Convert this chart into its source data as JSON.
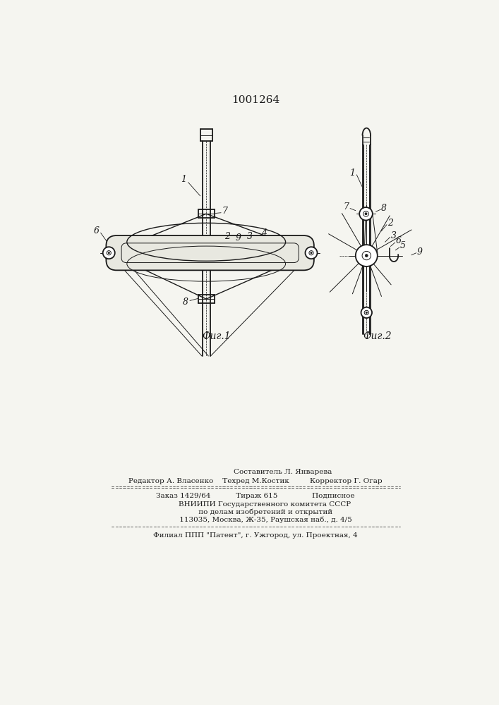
{
  "patent_number": "1001264",
  "fig1_label": "Фиг.1",
  "fig2_label": "Фиг.2",
  "bg_color": "#f5f5f0",
  "line_color": "#1a1a1a",
  "footer_line1": "                        Составитель Л. Январева",
  "footer_line2": "Редактор А. Власенко    Техред М.Костик         Корректор Г. Огар",
  "footer_line3": "Заказ 1429/64           Тираж 615               Подписное",
  "footer_line4": "        ВНИИПИ Государственного комитета СССР",
  "footer_line5": "         по делам изобретений и открытий",
  "footer_line6": "         113035, Москва, Ж-35, Раушская наб., д. 4/5",
  "footer_line7": "Филиал ППП \"Патент\", г. Ужгород, ул. Проектная, 4"
}
